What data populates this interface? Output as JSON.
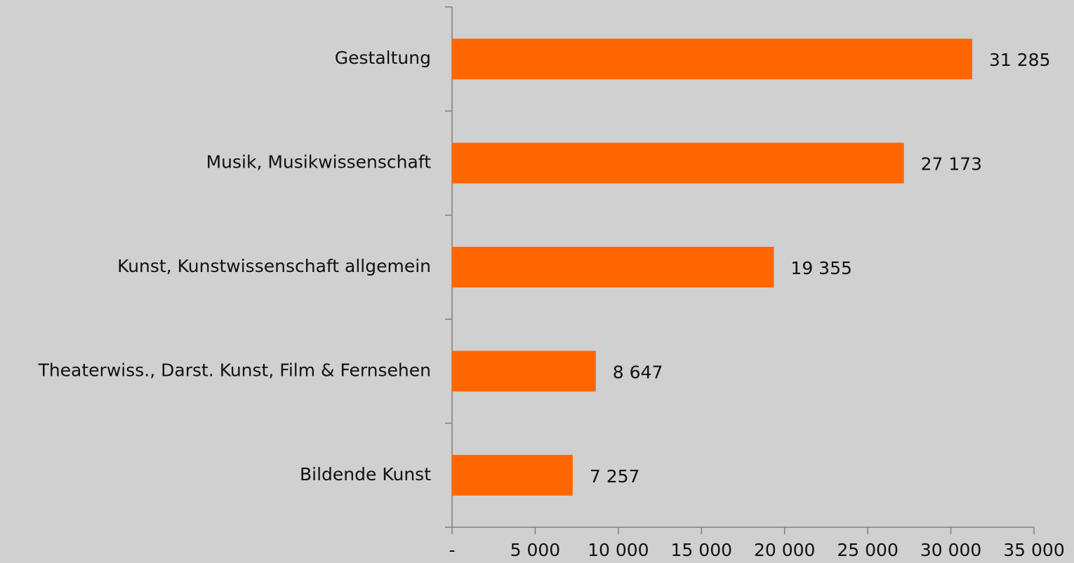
{
  "chart_data": {
    "type": "bar",
    "orientation": "horizontal",
    "categories": [
      "Gestaltung",
      "Musik, Musikwissenschaft",
      "Kunst, Kunstwissenschaft allgemein",
      "Theaterwiss., Darst. Kunst, Film & Fernsehen",
      "Bildende Kunst"
    ],
    "values": [
      31285,
      27173,
      19355,
      8647,
      7257
    ],
    "value_labels": [
      "31 285",
      "27 173",
      "19 355",
      "8 647",
      "7 257"
    ],
    "color": "#ff6600",
    "xlim": [
      0,
      35000
    ],
    "xticks": [
      {
        "value": 0,
        "label": "-"
      },
      {
        "value": 5000,
        "label": "5 000"
      },
      {
        "value": 10000,
        "label": "10 000"
      },
      {
        "value": 15000,
        "label": "15 000"
      },
      {
        "value": 20000,
        "label": "20 000"
      },
      {
        "value": 25000,
        "label": "25 000"
      },
      {
        "value": 30000,
        "label": "30 000"
      },
      {
        "value": 35000,
        "label": "35 000"
      }
    ],
    "grid": false
  }
}
